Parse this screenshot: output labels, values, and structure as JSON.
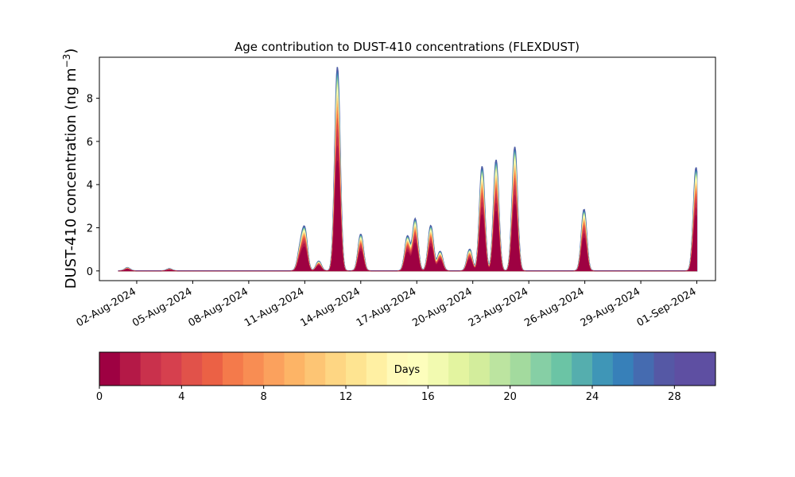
{
  "chart_data": {
    "type": "area",
    "title": "Age contribution to DUST-410 concentrations (FLEXDUST)",
    "ylabel_main": "DUST-410 concentration (ng m",
    "ylabel_sup": "−3",
    "ylabel_close": ")",
    "xlabel": "",
    "x_range": [
      "2024-07-31",
      "2024-09-02"
    ],
    "ylim": [
      -0.45,
      9.9
    ],
    "y_ticks": [
      0,
      2,
      4,
      6,
      8
    ],
    "x_ticks": [
      "02-Aug-2024",
      "05-Aug-2024",
      "08-Aug-2024",
      "11-Aug-2024",
      "14-Aug-2024",
      "17-Aug-2024",
      "20-Aug-2024",
      "23-Aug-2024",
      "26-Aug-2024",
      "29-Aug-2024",
      "01-Sep-2024"
    ],
    "grid": false,
    "stacking": "cumulative by particle age (days)",
    "total_series_color": "#4e65a8",
    "young_age_color": "#a3044a",
    "peaks": [
      {
        "date": "2024-08-01 12:00",
        "total": 0.15
      },
      {
        "date": "2024-08-03 18:00",
        "total": 0.1
      },
      {
        "date": "2024-08-10 18:00",
        "total": 0.95
      },
      {
        "date": "2024-08-11 00:00",
        "total": 1.85
      },
      {
        "date": "2024-08-11 18:00",
        "total": 0.45
      },
      {
        "date": "2024-08-12 18:00",
        "total": 9.45
      },
      {
        "date": "2024-08-14 00:00",
        "total": 1.7
      },
      {
        "date": "2024-08-16 12:00",
        "total": 1.6
      },
      {
        "date": "2024-08-16 22:00",
        "total": 2.4
      },
      {
        "date": "2024-08-17 18:00",
        "total": 2.1
      },
      {
        "date": "2024-08-18 06:00",
        "total": 0.9
      },
      {
        "date": "2024-08-19 20:00",
        "total": 1.0
      },
      {
        "date": "2024-08-20 12:00",
        "total": 4.85
      },
      {
        "date": "2024-08-21 06:00",
        "total": 5.15
      },
      {
        "date": "2024-08-22 06:00",
        "total": 5.75
      },
      {
        "date": "2024-08-25 23:00",
        "total": 2.85
      },
      {
        "date": "2024-08-31 23:00",
        "total": 4.8
      }
    ],
    "colorbar": {
      "label": "Days",
      "range": [
        0,
        30
      ],
      "bins": 30,
      "ticks": [
        0,
        4,
        8,
        12,
        16,
        20,
        24,
        28
      ],
      "colormap": "Spectral",
      "colors": [
        "#9e0142",
        "#b41947",
        "#c9314c",
        "#d6404e",
        "#e1524a",
        "#eb6145",
        "#f47a4b",
        "#f88d53",
        "#fba15d",
        "#fdb466",
        "#fdc574",
        "#fed683",
        "#fee491",
        "#fff0a3",
        "#fffab9",
        "#fdfebc",
        "#f2fab0",
        "#e3f4a0",
        "#d3ed9c",
        "#bce4a0",
        "#a3da9e",
        "#86cfa5",
        "#6bc4a5",
        "#55aeae",
        "#3f96b7",
        "#3780b9",
        "#456bb0",
        "#5558a5",
        "#5e4fa2",
        "#5e4fa2"
      ]
    }
  }
}
